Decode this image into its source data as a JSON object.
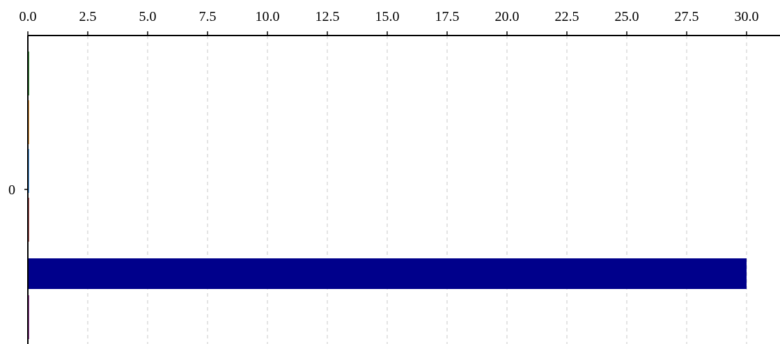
{
  "chart_data": {
    "type": "bar",
    "orientation": "horizontal",
    "title": "",
    "xlabel": "",
    "ylabel": "",
    "x_axis_position": "top",
    "xlim": [
      0,
      30
    ],
    "x_ticks": [
      "0.0",
      "2.5",
      "5.0",
      "7.5",
      "10.0",
      "12.5",
      "15.0",
      "17.5",
      "20.0",
      "22.5",
      "25.0",
      "27.5",
      "30.0"
    ],
    "y_ticks": [
      "0"
    ],
    "grid": "vertical dashed",
    "categories": [
      "0"
    ],
    "series": [
      {
        "color": "#008000",
        "values": [
          0.05
        ]
      },
      {
        "color": "#ff8c00",
        "values": [
          0.05
        ]
      },
      {
        "color": "#1e90ff",
        "values": [
          0.05
        ]
      },
      {
        "color": "#b22222",
        "values": [
          0.05
        ]
      },
      {
        "color": "#00008b",
        "values": [
          30.0
        ]
      },
      {
        "color": "#8b008b",
        "values": [
          0.05
        ]
      }
    ]
  }
}
